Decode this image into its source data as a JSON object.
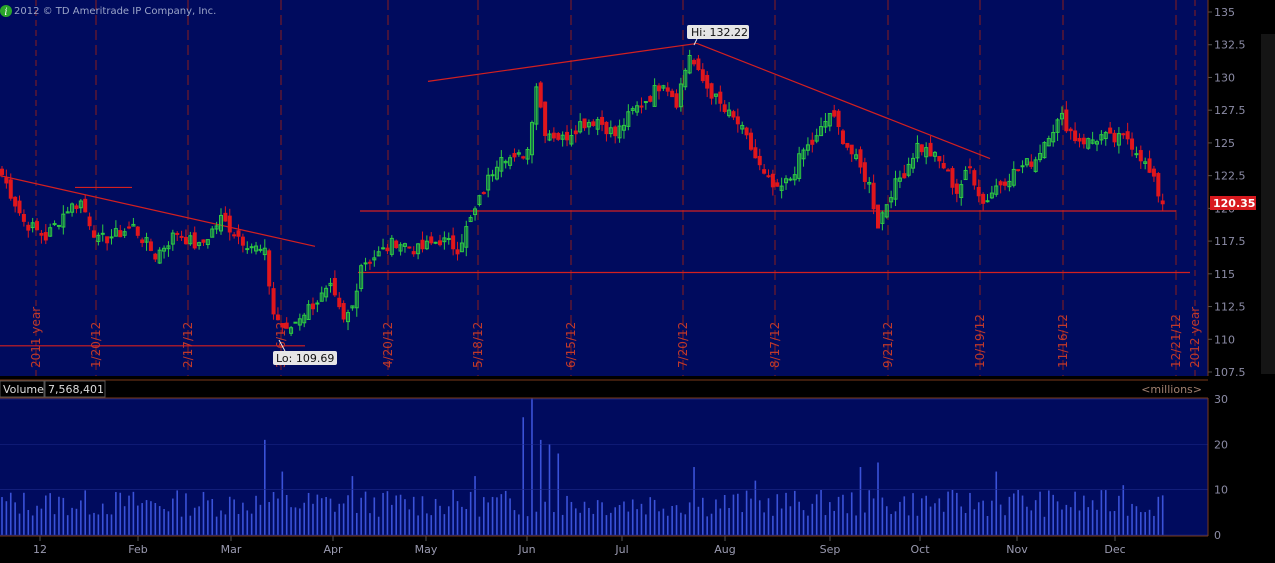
{
  "copyright": "2012 © TD Ameritrade IP Company, Inc.",
  "info_icon": "info-icon",
  "chart_data": [
    {
      "type": "candlestick",
      "price_axis": {
        "ylim": [
          107.5,
          135
        ],
        "ticks": [
          "135",
          "132.5",
          "130",
          "127.5",
          "125",
          "122.5",
          "120",
          "117.5",
          "115",
          "112.5",
          "110",
          "107.5"
        ]
      },
      "high_callout": "Hi: 132.22",
      "low_callout": "Lo: 109.69",
      "last_price": "120.35",
      "vertical_date_labels": [
        "2011 year",
        "1/20/12",
        "2/17/12",
        "3/16/12",
        "4/20/12",
        "5/18/12",
        "6/15/12",
        "7/20/12",
        "8/17/12",
        "9/21/12",
        "10/19/12",
        "11/16/12",
        "12/21/12",
        "2012 year"
      ],
      "month_labels": [
        "12",
        "Feb",
        "Mar",
        "Apr",
        "May",
        "Jun",
        "Jul",
        "Aug",
        "Sep",
        "Oct",
        "Nov",
        "Dec"
      ],
      "trend_lines": [
        {
          "from": [
            "Dec",
            122.5
          ],
          "to": [
            "Apr",
            117.1
          ],
          "color": "#d32020"
        },
        {
          "from": [
            "May",
            129.7
          ],
          "to": [
            "Jul",
            132.6
          ],
          "color": "#d32020"
        },
        {
          "from": [
            "Jul",
            132.6
          ],
          "to": [
            "Oct",
            123.8
          ],
          "color": "#d32020"
        },
        {
          "from": [
            "Apr",
            119.8
          ],
          "to": [
            "Dec",
            119.8
          ],
          "color": "#d32020"
        },
        {
          "from": [
            "Apr",
            115.1
          ],
          "to": [
            "Dec",
            115.1
          ],
          "color": "#d32020"
        },
        {
          "from": [
            "Dec",
            109.5
          ],
          "to": [
            "Mar",
            109.5
          ],
          "color": "#d32020"
        },
        {
          "from": [
            "Jan",
            121.6
          ],
          "to": [
            "Feb",
            121.6
          ],
          "color": "#d32020"
        }
      ],
      "anchors": [
        {
          "i": 0,
          "c": 122.6
        },
        {
          "i": 5,
          "c": 119.0
        },
        {
          "i": 10,
          "c": 117.8
        },
        {
          "i": 15,
          "c": 120.0
        },
        {
          "i": 18,
          "c": 120.5
        },
        {
          "i": 22,
          "c": 117.5
        },
        {
          "i": 26,
          "c": 118.0
        },
        {
          "i": 30,
          "c": 118.6
        },
        {
          "i": 35,
          "c": 116.4
        },
        {
          "i": 40,
          "c": 118.2
        },
        {
          "i": 45,
          "c": 117.0
        },
        {
          "i": 50,
          "c": 119.2
        },
        {
          "i": 55,
          "c": 117.6
        },
        {
          "i": 60,
          "c": 116.5
        },
        {
          "i": 62,
          "c": 112.0
        },
        {
          "i": 65,
          "c": 110.5
        },
        {
          "i": 68,
          "c": 111.8
        },
        {
          "i": 72,
          "c": 113.0
        },
        {
          "i": 75,
          "c": 113.8
        },
        {
          "i": 78,
          "c": 111.3
        },
        {
          "i": 80,
          "c": 112.5
        },
        {
          "i": 82,
          "c": 115.8
        },
        {
          "i": 86,
          "c": 116.5
        },
        {
          "i": 90,
          "c": 117.5
        },
        {
          "i": 95,
          "c": 116.8
        },
        {
          "i": 100,
          "c": 117.6
        },
        {
          "i": 104,
          "c": 117.0
        },
        {
          "i": 108,
          "c": 119.8
        },
        {
          "i": 111,
          "c": 122.2
        },
        {
          "i": 114,
          "c": 124.3
        },
        {
          "i": 117,
          "c": 123.6
        },
        {
          "i": 120,
          "c": 124.5
        },
        {
          "i": 122,
          "c": 129.5
        },
        {
          "i": 124,
          "c": 126.0
        },
        {
          "i": 128,
          "c": 125.3
        },
        {
          "i": 132,
          "c": 126.5
        },
        {
          "i": 136,
          "c": 126.8
        },
        {
          "i": 140,
          "c": 125.6
        },
        {
          "i": 144,
          "c": 127.4
        },
        {
          "i": 148,
          "c": 128.6
        },
        {
          "i": 151,
          "c": 129.8
        },
        {
          "i": 154,
          "c": 128.2
        },
        {
          "i": 157,
          "c": 131.8
        },
        {
          "i": 159,
          "c": 130.2
        },
        {
          "i": 162,
          "c": 128.8
        },
        {
          "i": 165,
          "c": 127.4
        },
        {
          "i": 168,
          "c": 126.5
        },
        {
          "i": 171,
          "c": 124.6
        },
        {
          "i": 174,
          "c": 122.4
        },
        {
          "i": 177,
          "c": 121.2
        },
        {
          "i": 180,
          "c": 122.3
        },
        {
          "i": 183,
          "c": 124.4
        },
        {
          "i": 186,
          "c": 125.3
        },
        {
          "i": 189,
          "c": 127.3
        },
        {
          "i": 192,
          "c": 125.4
        },
        {
          "i": 195,
          "c": 123.6
        },
        {
          "i": 198,
          "c": 121.8
        },
        {
          "i": 200,
          "c": 118.8
        },
        {
          "i": 203,
          "c": 121.3
        },
        {
          "i": 206,
          "c": 122.8
        },
        {
          "i": 209,
          "c": 124.8
        },
        {
          "i": 212,
          "c": 124.2
        },
        {
          "i": 215,
          "c": 123.2
        },
        {
          "i": 218,
          "c": 121.3
        },
        {
          "i": 221,
          "c": 123.1
        },
        {
          "i": 224,
          "c": 120.4
        },
        {
          "i": 227,
          "c": 121.7
        },
        {
          "i": 230,
          "c": 122.5
        },
        {
          "i": 233,
          "c": 123.2
        },
        {
          "i": 236,
          "c": 123.8
        },
        {
          "i": 239,
          "c": 125.8
        },
        {
          "i": 242,
          "c": 126.9
        },
        {
          "i": 245,
          "c": 125.4
        },
        {
          "i": 248,
          "c": 125.1
        },
        {
          "i": 251,
          "c": 125.5
        },
        {
          "i": 254,
          "c": 125.2
        },
        {
          "i": 257,
          "c": 125.4
        },
        {
          "i": 260,
          "c": 124.0
        },
        {
          "i": 263,
          "c": 122.0
        },
        {
          "i": 265,
          "c": 120.35
        }
      ],
      "volume_axis": {
        "ylim": [
          0,
          32
        ],
        "ticks": [
          "30",
          "20",
          "10",
          "0"
        ],
        "units": "<millions>"
      },
      "volume_label": "Volume",
      "volume_value": "7,568,401",
      "volume_spikes": [
        {
          "i": 60,
          "v": 21
        },
        {
          "i": 64,
          "v": 14
        },
        {
          "i": 80,
          "v": 13
        },
        {
          "i": 108,
          "v": 13
        },
        {
          "i": 119,
          "v": 26
        },
        {
          "i": 121,
          "v": 31
        },
        {
          "i": 123,
          "v": 21
        },
        {
          "i": 125,
          "v": 20
        },
        {
          "i": 127,
          "v": 18
        },
        {
          "i": 158,
          "v": 15
        },
        {
          "i": 172,
          "v": 12
        },
        {
          "i": 196,
          "v": 15
        },
        {
          "i": 200,
          "v": 16
        },
        {
          "i": 227,
          "v": 14
        },
        {
          "i": 232,
          "v": 10
        },
        {
          "i": 256,
          "v": 11
        }
      ]
    }
  ]
}
